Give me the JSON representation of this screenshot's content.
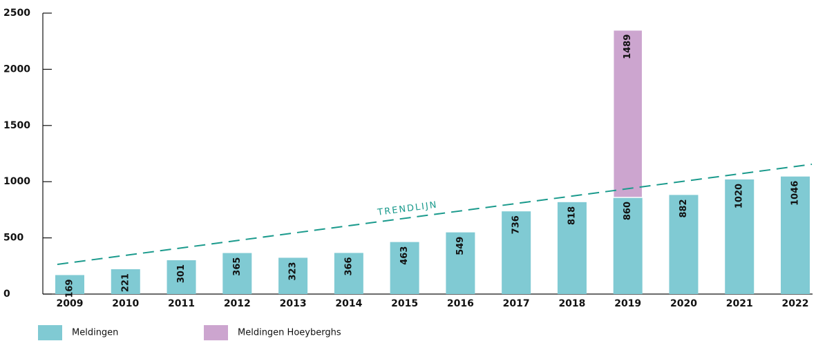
{
  "chart_data": {
    "type": "bar",
    "stacked": true,
    "categories": [
      "2009",
      "2010",
      "2011",
      "2012",
      "2013",
      "2014",
      "2015",
      "2016",
      "2017",
      "2018",
      "2019",
      "2020",
      "2021",
      "2022"
    ],
    "series": [
      {
        "name": "Meldingen",
        "color": "#80cad3",
        "values": [
          169,
          221,
          301,
          365,
          323,
          366,
          463,
          549,
          736,
          818,
          860,
          882,
          1020,
          1046
        ]
      },
      {
        "name": "Meldingen Hoeyberghs",
        "color": "#cca5cf",
        "values": [
          null,
          null,
          null,
          null,
          null,
          null,
          null,
          null,
          null,
          null,
          1489,
          null,
          null,
          null
        ]
      }
    ],
    "trendline": {
      "label": "TRENDLIJN",
      "from": 264,
      "to": 1155,
      "color": "#1a9a8c"
    },
    "ylim": [
      0,
      2500
    ],
    "yticks": [
      0,
      500,
      1000,
      1500,
      2000,
      2500
    ]
  }
}
